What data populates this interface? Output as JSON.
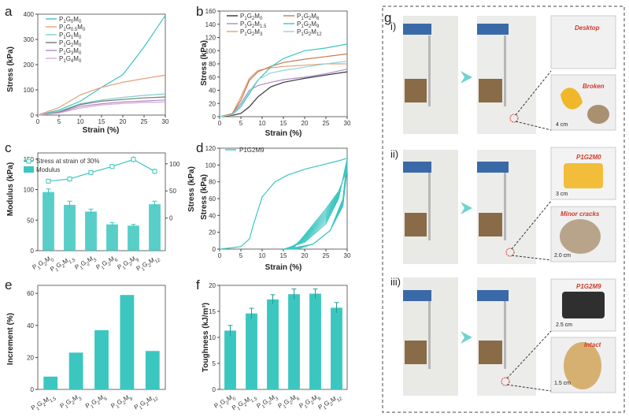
{
  "colors": {
    "teal": "#3cc6c0",
    "teal_light": "#8fe0dc",
    "black": "#222222",
    "orange": "#e3a27a",
    "purple": "#b18bc9",
    "brown": "#c77a4a",
    "arrow": "#6fd3cf",
    "label_red": "#d23a2a"
  },
  "panel_labels": {
    "a": "a",
    "b": "b",
    "c": "c",
    "d": "d",
    "e": "e",
    "f": "f",
    "g": "g"
  },
  "chart_data": [
    {
      "id": "a",
      "type": "line",
      "title": "",
      "xlabel": "Strain (%)",
      "ylabel": "Stress (kPa)",
      "xlim": [
        0,
        30
      ],
      "ylim": [
        0,
        400
      ],
      "xticks": [
        0,
        5,
        10,
        15,
        20,
        25,
        30
      ],
      "yticks": [
        0,
        100,
        200,
        300,
        400
      ],
      "series": [
        {
          "name": "P1G0M0",
          "color": "#3cc6c0",
          "x": [
            0,
            5,
            10,
            15,
            20,
            25,
            30
          ],
          "y": [
            0,
            20,
            55,
            110,
            160,
            270,
            395
          ]
        },
        {
          "name": "P1G0.5M0",
          "color": "#e3a27a",
          "x": [
            0,
            5,
            10,
            15,
            20,
            25,
            30
          ],
          "y": [
            0,
            30,
            80,
            110,
            130,
            145,
            158
          ]
        },
        {
          "name": "P1G1M0",
          "color": "#7fd0cc",
          "x": [
            0,
            5,
            10,
            15,
            20,
            25,
            30
          ],
          "y": [
            0,
            15,
            45,
            60,
            70,
            78,
            84
          ]
        },
        {
          "name": "P1G2M0",
          "color": "#777777",
          "x": [
            0,
            5,
            10,
            15,
            20,
            25,
            30
          ],
          "y": [
            0,
            12,
            42,
            55,
            62,
            68,
            72
          ]
        },
        {
          "name": "P1G3M0",
          "color": "#b18bc9",
          "x": [
            0,
            5,
            10,
            15,
            20,
            25,
            30
          ],
          "y": [
            0,
            10,
            35,
            45,
            52,
            56,
            60
          ]
        },
        {
          "name": "P1G4M0",
          "color": "#d6a7d9",
          "x": [
            0,
            5,
            10,
            15,
            20,
            25,
            30
          ],
          "y": [
            0,
            8,
            28,
            40,
            46,
            50,
            52
          ]
        }
      ]
    },
    {
      "id": "b",
      "type": "line",
      "xlabel": "Strain (%)",
      "ylabel": "Stress (kPa)",
      "xlim": [
        0,
        30
      ],
      "ylim": [
        0,
        160
      ],
      "xticks": [
        0,
        5,
        10,
        15,
        20,
        25,
        30
      ],
      "yticks": [
        0,
        20,
        40,
        60,
        80,
        100,
        120,
        140,
        160
      ],
      "series": [
        {
          "name": "P1G2M0",
          "color": "#333333",
          "x": [
            0,
            3,
            5,
            7,
            9,
            12,
            15,
            20,
            25,
            30
          ],
          "y": [
            0,
            2,
            5,
            15,
            30,
            45,
            52,
            58,
            63,
            68
          ]
        },
        {
          "name": "P1G2M1.5",
          "color": "#b18bc9",
          "x": [
            0,
            3,
            5,
            7,
            9,
            12,
            15,
            20,
            25,
            30
          ],
          "y": [
            0,
            4,
            20,
            40,
            47,
            52,
            56,
            60,
            65,
            72
          ]
        },
        {
          "name": "P1G2M3",
          "color": "#e3a27a",
          "x": [
            0,
            3,
            5,
            7,
            9,
            12,
            15,
            20,
            25,
            30
          ],
          "y": [
            0,
            5,
            30,
            58,
            70,
            74,
            76,
            78,
            80,
            80
          ]
        },
        {
          "name": "P1G2M6",
          "color": "#c77a4a",
          "x": [
            0,
            3,
            5,
            7,
            9,
            12,
            15,
            20,
            25,
            30
          ],
          "y": [
            0,
            4,
            25,
            55,
            68,
            76,
            82,
            87,
            91,
            95
          ]
        },
        {
          "name": "P1G2M9",
          "color": "#3cc6c0",
          "x": [
            0,
            3,
            5,
            7,
            9,
            12,
            15,
            20,
            25,
            30
          ],
          "y": [
            0,
            3,
            15,
            35,
            55,
            75,
            88,
            100,
            104,
            110
          ]
        },
        {
          "name": "P1G2M12",
          "color": "#8fd6dd",
          "x": [
            0,
            3,
            5,
            7,
            9,
            12,
            15,
            20,
            25,
            30
          ],
          "y": [
            0,
            3,
            18,
            38,
            56,
            66,
            70,
            75,
            80,
            84
          ]
        }
      ]
    },
    {
      "id": "c",
      "type": "bar",
      "xlabel": "",
      "ylabel": "Modulus (kPa)",
      "y2label": "Stress (kPa)",
      "categories": [
        "P1G2M0",
        "P1G2M1.5",
        "P1G2M3",
        "P1G2M6",
        "P1G2M9",
        "P1G2M12"
      ],
      "values": [
        96,
        75,
        64,
        43,
        41,
        76
      ],
      "errors": [
        5,
        6,
        4,
        3,
        2,
        5
      ],
      "ylim": [
        0,
        160
      ],
      "yticks": [
        0,
        50,
        100,
        150
      ],
      "line_series": {
        "name": "Stress at strain of 30%",
        "values": [
          68,
          72,
          84,
          95,
          108,
          86
        ],
        "errors": [
          4,
          5,
          4,
          4,
          6,
          5
        ]
      },
      "y2lim": [
        -60,
        120
      ],
      "y2ticks": [
        0,
        50,
        100
      ],
      "legend": [
        "Stress at strain of 30%",
        "Modulus"
      ]
    },
    {
      "id": "d",
      "type": "line",
      "xlabel": "Strain (%)",
      "ylabel": "Stress (kPa)",
      "xlim": [
        0,
        30
      ],
      "ylim": [
        0,
        120
      ],
      "xticks": [
        0,
        5,
        10,
        15,
        20,
        25,
        30
      ],
      "yticks": [
        0,
        20,
        40,
        60,
        80,
        100,
        120
      ],
      "legend": [
        "P1G2M9"
      ],
      "series": [
        {
          "name": "P1G2M9",
          "color": "#3cc6c0",
          "x": [
            0,
            2,
            5,
            7,
            8,
            10,
            13,
            16,
            20,
            24,
            28,
            30
          ],
          "y": [
            0,
            1,
            3,
            12,
            30,
            62,
            80,
            88,
            95,
            100,
            105,
            108
          ]
        }
      ]
    },
    {
      "id": "e",
      "type": "bar",
      "xlabel": "",
      "ylabel": "Increment (%)",
      "categories": [
        "P1G2M1.5",
        "P1G2M3",
        "P1G2M6",
        "P1G2M9",
        "P1G2M12"
      ],
      "values": [
        8,
        23,
        37,
        59,
        24
      ],
      "ylim": [
        0,
        65
      ],
      "yticks": [
        0,
        20,
        40,
        60
      ]
    },
    {
      "id": "f",
      "type": "bar",
      "xlabel": "",
      "ylabel": "Toughness (kJ/m³)",
      "categories": [
        "P1G2M0",
        "P1G2M1.5",
        "P1G2M3",
        "P1G2M6",
        "P1G2M9",
        "P1G2M12"
      ],
      "values": [
        11.3,
        14.6,
        17.3,
        18.3,
        18.4,
        15.7
      ],
      "errors": [
        1.0,
        1.0,
        0.9,
        1.0,
        0.9,
        1.0
      ],
      "ylim": [
        0,
        20
      ],
      "yticks": [
        0,
        5,
        10,
        15,
        20
      ]
    }
  ],
  "panel_g": {
    "rows": [
      {
        "roman": "i)",
        "top_label": "Desktop",
        "bottom_label": "Broken",
        "bottom_scale": "4 cm"
      },
      {
        "roman": "ii)",
        "top_label": "P1G2M0",
        "top_scale": "3 cm",
        "bottom_label": "Minor cracks",
        "bottom_scale": "2.0 cm"
      },
      {
        "roman": "iii)",
        "top_label": "P1G2M9",
        "top_scale": "2.5 cm",
        "bottom_label": "Intact",
        "bottom_scale": "1.5 cm"
      }
    ]
  }
}
